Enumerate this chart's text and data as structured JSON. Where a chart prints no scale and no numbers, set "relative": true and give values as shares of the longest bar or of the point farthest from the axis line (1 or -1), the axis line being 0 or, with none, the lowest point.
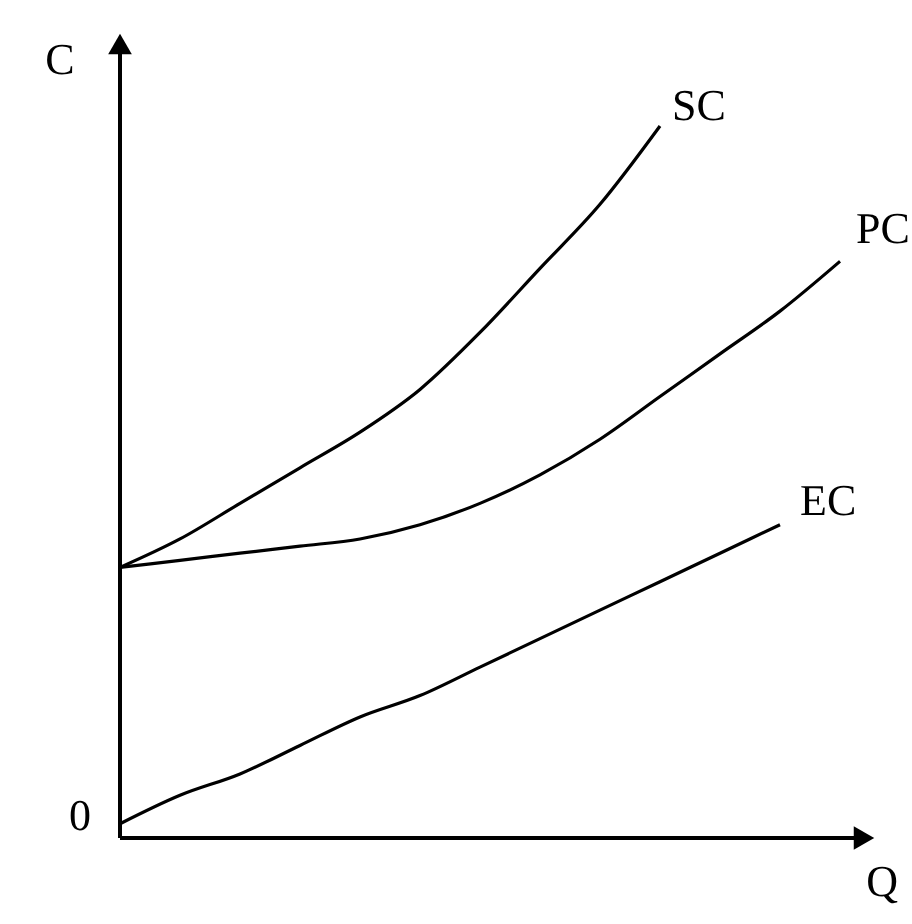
{
  "chart_data": {
    "type": "line",
    "xlabel": "Q",
    "ylabel": "C",
    "relative": true,
    "categories": [
      null,
      null,
      null,
      null,
      null,
      null,
      null,
      null,
      null,
      null,
      null,
      null,
      null
    ],
    "series": [
      {
        "name": "SC",
        "color": "#000000",
        "values": [
          0.38,
          0.42,
          0.47,
          0.52,
          0.57,
          0.63,
          0.71,
          0.8,
          0.89,
          1,
          null,
          null,
          null
        ]
      },
      {
        "name": "PC",
        "color": "#000000",
        "values": [
          0.38,
          0.39,
          0.4,
          0.41,
          0.42,
          0.44,
          0.47,
          0.51,
          0.56,
          0.62,
          0.68,
          0.74,
          0.81
        ]
      },
      {
        "name": "EC",
        "color": "#000000",
        "values": [
          0.02,
          0.06,
          0.09,
          0.13,
          0.17,
          0.2,
          0.24,
          0.28,
          0.32,
          0.36,
          0.4,
          0.44,
          null
        ]
      }
    ],
    "annotations": [
      "0"
    ]
  }
}
